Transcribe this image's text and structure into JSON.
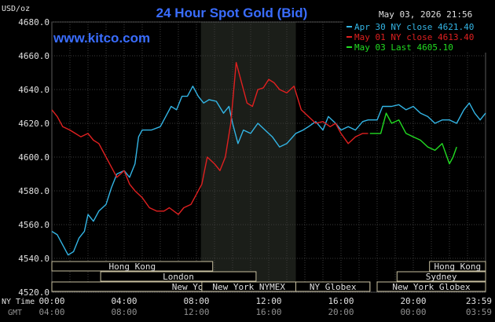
{
  "chart_data": {
    "type": "line",
    "title": "24 Hour Spot Gold (Bid)",
    "brand": "www.kitco.com",
    "timestamp": "May 03, 2026 21:56",
    "ylabel": "USD/oz",
    "ylim": [
      4520,
      4680
    ],
    "yticks": [
      "4680.0",
      "4660.0",
      "4640.0",
      "4620.0",
      "4600.0",
      "4580.0",
      "4560.0",
      "4540.0",
      "4520.0"
    ],
    "xlim": [
      0,
      24
    ],
    "x_axis_labels": {
      "ny_time": "NY Time",
      "gmt": "GMT"
    },
    "xticks": [
      {
        "x": 0,
        "ny": "00:00",
        "gmt": "04:00"
      },
      {
        "x": 4,
        "ny": "04:00",
        "gmt": "08:00"
      },
      {
        "x": 8,
        "ny": "08:00",
        "gmt": "12:00"
      },
      {
        "x": 12,
        "ny": "12:00",
        "gmt": "16:00"
      },
      {
        "x": 16,
        "ny": "16:00",
        "gmt": "20:00"
      },
      {
        "x": 20,
        "ny": "20:00",
        "gmt": "00:00"
      },
      {
        "x": 24,
        "ny": "23:59",
        "gmt": "03:59"
      }
    ],
    "shaded_region": [
      8.25,
      13.5
    ],
    "grid": true,
    "legend_position": "top-right",
    "series": [
      {
        "name": "Apr 30 NY close 4621.40",
        "color": "#33b5e5",
        "points": [
          [
            0,
            4556
          ],
          [
            0.3,
            4554
          ],
          [
            0.6,
            4548
          ],
          [
            0.9,
            4542
          ],
          [
            1.2,
            4544
          ],
          [
            1.5,
            4552
          ],
          [
            1.8,
            4556
          ],
          [
            2,
            4566
          ],
          [
            2.3,
            4562
          ],
          [
            2.6,
            4568
          ],
          [
            3,
            4572
          ],
          [
            3.3,
            4582
          ],
          [
            3.6,
            4590
          ],
          [
            4,
            4592
          ],
          [
            4.3,
            4588
          ],
          [
            4.6,
            4596
          ],
          [
            4.8,
            4612
          ],
          [
            5,
            4616
          ],
          [
            5.5,
            4616
          ],
          [
            6,
            4618
          ],
          [
            6.3,
            4624
          ],
          [
            6.6,
            4630
          ],
          [
            6.9,
            4628
          ],
          [
            7.2,
            4636
          ],
          [
            7.5,
            4636
          ],
          [
            7.8,
            4642
          ],
          [
            8.1,
            4636
          ],
          [
            8.4,
            4632
          ],
          [
            8.7,
            4634
          ],
          [
            9.1,
            4633
          ],
          [
            9.5,
            4626
          ],
          [
            9.8,
            4630
          ],
          [
            10.0,
            4620
          ],
          [
            10.3,
            4608
          ],
          [
            10.6,
            4616
          ],
          [
            11,
            4614
          ],
          [
            11.4,
            4620
          ],
          [
            11.8,
            4616
          ],
          [
            12.2,
            4612
          ],
          [
            12.6,
            4606
          ],
          [
            13,
            4608
          ],
          [
            13.5,
            4614
          ],
          [
            13.9,
            4616
          ],
          [
            14.2,
            4618
          ],
          [
            14.6,
            4621
          ],
          [
            15,
            4616
          ],
          [
            15.3,
            4624
          ],
          [
            15.7,
            4620
          ],
          [
            16,
            4616
          ],
          [
            16.4,
            4618
          ],
          [
            16.8,
            4616
          ],
          [
            17.2,
            4621
          ],
          [
            17.5,
            4622
          ],
          [
            18,
            4622
          ],
          [
            18.3,
            4630
          ],
          [
            18.8,
            4630
          ],
          [
            19.2,
            4631
          ],
          [
            19.6,
            4628
          ],
          [
            20,
            4630
          ],
          [
            20.4,
            4626
          ],
          [
            20.8,
            4624
          ],
          [
            21.2,
            4620
          ],
          [
            21.6,
            4622
          ],
          [
            22,
            4622
          ],
          [
            22.4,
            4620
          ],
          [
            22.8,
            4628
          ],
          [
            23.1,
            4632
          ],
          [
            23.4,
            4626
          ],
          [
            23.7,
            4622
          ],
          [
            24,
            4626
          ]
        ]
      },
      {
        "name": "May 01 NY close 4613.40",
        "color": "#e02020",
        "points": [
          [
            0,
            4628
          ],
          [
            0.3,
            4624
          ],
          [
            0.6,
            4618
          ],
          [
            1,
            4616
          ],
          [
            1.3,
            4614
          ],
          [
            1.6,
            4612
          ],
          [
            2,
            4614
          ],
          [
            2.3,
            4610
          ],
          [
            2.6,
            4608
          ],
          [
            3,
            4600
          ],
          [
            3.3,
            4594
          ],
          [
            3.6,
            4588
          ],
          [
            4,
            4592
          ],
          [
            4.3,
            4584
          ],
          [
            4.6,
            4580
          ],
          [
            5,
            4576
          ],
          [
            5.4,
            4570
          ],
          [
            5.8,
            4568
          ],
          [
            6.2,
            4568
          ],
          [
            6.5,
            4570
          ],
          [
            7,
            4566
          ],
          [
            7.3,
            4570
          ],
          [
            7.7,
            4572
          ],
          [
            8,
            4578
          ],
          [
            8.3,
            4584
          ],
          [
            8.6,
            4600
          ],
          [
            9,
            4596
          ],
          [
            9.3,
            4592
          ],
          [
            9.6,
            4600
          ],
          [
            9.9,
            4620
          ],
          [
            10.2,
            4656
          ],
          [
            10.5,
            4644
          ],
          [
            10.8,
            4632
          ],
          [
            11.1,
            4630
          ],
          [
            11.4,
            4640
          ],
          [
            11.7,
            4641
          ],
          [
            12,
            4646
          ],
          [
            12.3,
            4644
          ],
          [
            12.6,
            4640
          ],
          [
            13,
            4638
          ],
          [
            13.4,
            4642
          ],
          [
            13.8,
            4628
          ],
          [
            14.2,
            4624
          ],
          [
            14.6,
            4620
          ],
          [
            15,
            4621
          ],
          [
            15.4,
            4618
          ],
          [
            15.7,
            4620
          ],
          [
            16,
            4614
          ],
          [
            16.4,
            4608
          ],
          [
            16.8,
            4612
          ],
          [
            17.2,
            4614
          ],
          [
            17.5,
            4614
          ]
        ]
      },
      {
        "name": "May 03 Last 4605.10",
        "color": "#22dd22",
        "points": [
          [
            17.6,
            4614
          ],
          [
            18.2,
            4614
          ],
          [
            18.5,
            4626
          ],
          [
            18.8,
            4620
          ],
          [
            19.2,
            4622
          ],
          [
            19.6,
            4614
          ],
          [
            20,
            4612
          ],
          [
            20.4,
            4610
          ],
          [
            20.8,
            4606
          ],
          [
            21.2,
            4604
          ],
          [
            21.6,
            4608
          ],
          [
            22,
            4596
          ],
          [
            22.2,
            4600
          ],
          [
            22.4,
            4606
          ]
        ]
      }
    ],
    "sessions": [
      {
        "label": "Hong Kong",
        "start": 0,
        "end": 8.9,
        "row": 0
      },
      {
        "label": "London",
        "start": 2.7,
        "end": 11.3,
        "row": 1
      },
      {
        "label": "New York Globex",
        "start": 0,
        "end": 17.6,
        "row": 2
      },
      {
        "label": "New York NYMEX",
        "start": 8.3,
        "end": 13.5,
        "row": 2
      },
      {
        "label": "NY Globex",
        "start": 13.5,
        "end": 17.6,
        "row": 2
      },
      {
        "label": "Hong Kong",
        "start": 20.9,
        "end": 24,
        "row": 0
      },
      {
        "label": "Sydney",
        "start": 19.1,
        "end": 24,
        "row": 1
      },
      {
        "label": "New York Globex",
        "start": 18,
        "end": 24,
        "row": 2
      }
    ]
  }
}
